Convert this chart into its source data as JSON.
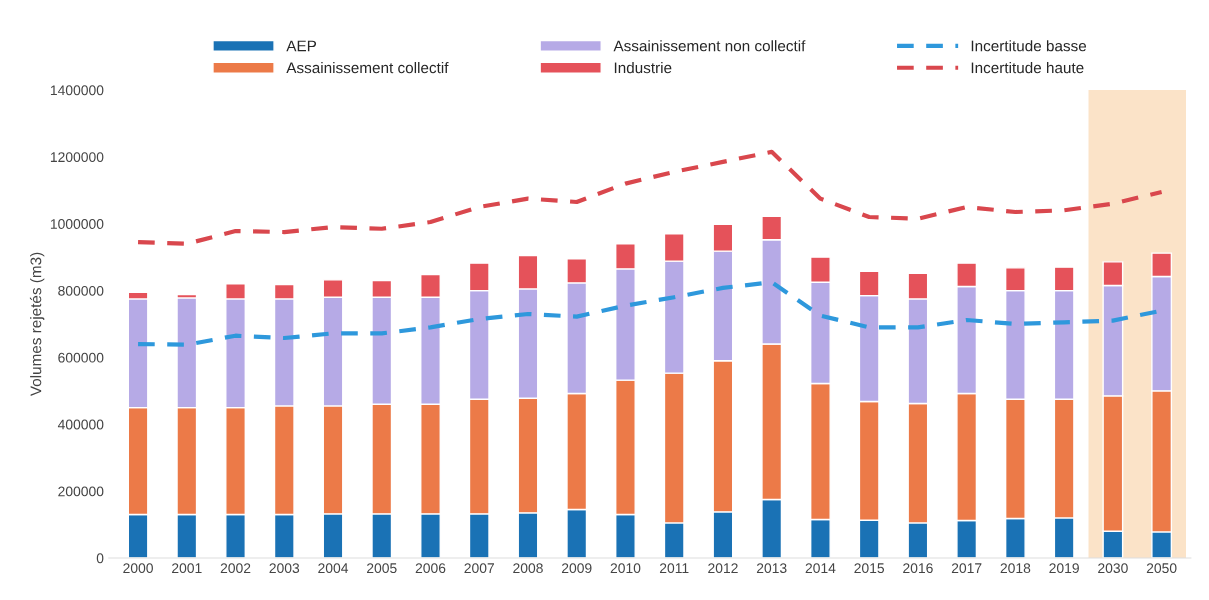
{
  "chart_data": {
    "type": "bar",
    "stacked": true,
    "ylabel": "Volumes rejetés (m3)",
    "categories": [
      "2000",
      "2001",
      "2002",
      "2003",
      "2004",
      "2005",
      "2006",
      "2007",
      "2008",
      "2009",
      "2010",
      "2011",
      "2012",
      "2013",
      "2014",
      "2015",
      "2016",
      "2017",
      "2018",
      "2019",
      "2030",
      "2050"
    ],
    "ylim": [
      0,
      1400000
    ],
    "yticks": [
      0,
      200000,
      400000,
      600000,
      800000,
      1000000,
      1200000,
      1400000
    ],
    "grid": false,
    "legend": "top",
    "bands": [
      {
        "axis": "x",
        "from": "2030",
        "to": "2050",
        "color": "#fbe3c8"
      }
    ],
    "series": [
      {
        "name": "AEP",
        "color": "#1a72b5",
        "values": [
          130000,
          130000,
          130000,
          130000,
          132000,
          132000,
          132000,
          132000,
          135000,
          145000,
          130000,
          105000,
          138000,
          175000,
          115000,
          113000,
          105000,
          112000,
          118000,
          120000,
          80000,
          78000
        ]
      },
      {
        "name": "Assainissement collectif",
        "color": "#ec7a48",
        "values": [
          320000,
          320000,
          320000,
          325000,
          323000,
          328000,
          328000,
          343000,
          343000,
          347000,
          402000,
          448000,
          452000,
          465000,
          407000,
          355000,
          357000,
          380000,
          357000,
          355000,
          405000,
          422000
        ]
      },
      {
        "name": "Assainissement non collectif",
        "color": "#b6aae6",
        "values": [
          325000,
          328000,
          325000,
          320000,
          325000,
          320000,
          320000,
          325000,
          327000,
          331000,
          333000,
          335000,
          328000,
          312000,
          303000,
          317000,
          313000,
          320000,
          325000,
          325000,
          330000,
          342000
        ]
      },
      {
        "name": "Industrie",
        "color": "#e5525a",
        "values": [
          20000,
          10000,
          45000,
          43000,
          52000,
          50000,
          68000,
          82000,
          100000,
          72000,
          75000,
          82000,
          80000,
          70000,
          75000,
          73000,
          77000,
          70000,
          68000,
          70000,
          71000,
          70000
        ]
      },
      {
        "name": "Incertitude basse",
        "type": "line",
        "line_style": "dashed",
        "color": "#2e98dc",
        "values": [
          640000,
          638000,
          665000,
          658000,
          672000,
          672000,
          690000,
          715000,
          730000,
          722000,
          755000,
          780000,
          808000,
          825000,
          725000,
          690000,
          690000,
          712000,
          700000,
          705000,
          710000,
          740000
        ]
      },
      {
        "name": "Incertitude haute",
        "type": "line",
        "line_style": "dashed",
        "color": "#d9474d",
        "values": [
          945000,
          940000,
          978000,
          975000,
          990000,
          985000,
          1005000,
          1050000,
          1075000,
          1065000,
          1120000,
          1155000,
          1185000,
          1215000,
          1075000,
          1020000,
          1015000,
          1050000,
          1035000,
          1040000,
          1060000,
          1095000
        ]
      }
    ]
  }
}
